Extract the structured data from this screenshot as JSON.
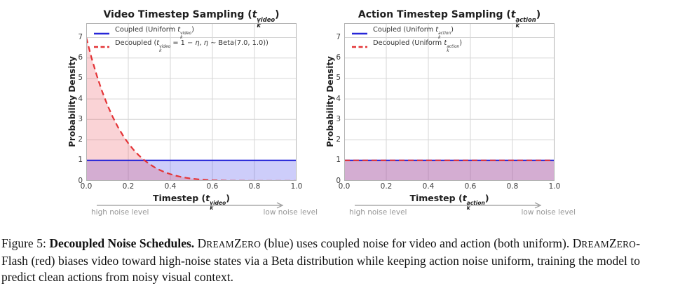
{
  "chart_data": [
    {
      "type": "line",
      "title_segments": [
        {
          "t": "Video Timestep Sampling ("
        },
        {
          "t": "t",
          "i": 1
        },
        {
          "stack": {
            "sup": "video",
            "sub": "k"
          }
        },
        {
          "t": ")"
        }
      ],
      "ylabel": "Probability Density",
      "xlabel_segments": [
        {
          "t": "Timestep ("
        },
        {
          "t": "t",
          "i": 1
        },
        {
          "stack": {
            "sup": "video",
            "sub": "k"
          }
        },
        {
          "t": ")"
        }
      ],
      "xlim": [
        0,
        1
      ],
      "ylim": [
        0,
        7.7
      ],
      "xticks": [
        "0.0",
        "0.2",
        "0.4",
        "0.6",
        "0.8",
        "1.0"
      ],
      "xtick_values": [
        0,
        0.2,
        0.4,
        0.6,
        0.8,
        1.0
      ],
      "yticks": [
        "0",
        "1",
        "2",
        "3",
        "4",
        "5",
        "6",
        "7"
      ],
      "ytick_values": [
        0,
        1,
        2,
        3,
        4,
        5,
        6,
        7
      ],
      "grid": true,
      "grid_color": "#d6d6d6",
      "border_color": "#b3b3b3",
      "legend_position": "upper-left",
      "legend": [
        {
          "color": "#2626d8",
          "dash": false,
          "segments": [
            {
              "t": "Coupled (Uniform "
            },
            {
              "t": "t",
              "i": 1
            },
            {
              "stack": {
                "sup": "video",
                "sub": "k"
              }
            },
            {
              "t": ")"
            }
          ]
        },
        {
          "color": "#e43437",
          "dash": true,
          "segments": [
            {
              "t": "Decoupled ("
            },
            {
              "t": "t",
              "i": 1
            },
            {
              "stack": {
                "sup": "video",
                "sub": "k"
              }
            },
            {
              "t": " = 1 − "
            },
            {
              "t": "η",
              "i": 1
            },
            {
              "t": ",  "
            },
            {
              "t": "η",
              "i": 1
            },
            {
              "t": " ∼ Beta(7.0, 1.0))"
            }
          ]
        }
      ],
      "series": [
        {
          "name": "Coupled (Uniform t_k^video)",
          "color": "#2626d8",
          "fill": "rgba(70,70,235,0.27)",
          "dash": false,
          "x": [
            0,
            1
          ],
          "y": [
            1,
            1
          ]
        },
        {
          "name": "Decoupled (t_k^video = 1 - eta, eta ~ Beta(7.0, 1.0))",
          "color": "#e43437",
          "fill": "rgba(235,80,90,0.25)",
          "dash": true,
          "x": [
            0,
            0.025,
            0.05,
            0.075,
            0.1,
            0.125,
            0.15,
            0.175,
            0.2,
            0.225,
            0.25,
            0.275,
            0.3,
            0.325,
            0.35,
            0.375,
            0.4,
            0.425,
            0.45,
            0.475,
            0.5,
            0.55,
            0.6,
            0.65,
            0.7,
            0.75,
            0.8,
            0.85,
            0.9,
            0.95,
            1.0
          ],
          "y": [
            7.0,
            6.013,
            5.146,
            4.385,
            3.72,
            3.142,
            2.64,
            2.207,
            1.835,
            1.517,
            1.246,
            1.016,
            0.824,
            0.662,
            0.528,
            0.417,
            0.327,
            0.253,
            0.194,
            0.147,
            0.109,
            0.058,
            0.029,
            0.013,
            0.005,
            0.002,
            0.001,
            0.0,
            0.0,
            0.0,
            0.0
          ]
        }
      ],
      "annotations": {
        "left": "high noise level",
        "right": "low noise level"
      }
    },
    {
      "type": "line",
      "title_segments": [
        {
          "t": "Action Timestep Sampling ("
        },
        {
          "t": "t",
          "i": 1
        },
        {
          "stack": {
            "sup": "action",
            "sub": "k"
          }
        },
        {
          "t": ")"
        }
      ],
      "ylabel": "Probability Density",
      "xlabel_segments": [
        {
          "t": "Timestep ("
        },
        {
          "t": "t",
          "i": 1
        },
        {
          "stack": {
            "sup": "action",
            "sub": "k"
          }
        },
        {
          "t": ")"
        }
      ],
      "xlim": [
        0,
        1
      ],
      "ylim": [
        0,
        7.7
      ],
      "xticks": [
        "0.0",
        "0.2",
        "0.4",
        "0.6",
        "0.8",
        "1.0"
      ],
      "xtick_values": [
        0,
        0.2,
        0.4,
        0.6,
        0.8,
        1.0
      ],
      "yticks": [
        "0",
        "1",
        "2",
        "3",
        "4",
        "5",
        "6",
        "7"
      ],
      "ytick_values": [
        0,
        1,
        2,
        3,
        4,
        5,
        6,
        7
      ],
      "grid": true,
      "grid_color": "#d6d6d6",
      "border_color": "#b3b3b3",
      "legend_position": "upper-left",
      "legend": [
        {
          "color": "#2626d8",
          "dash": false,
          "segments": [
            {
              "t": "Coupled (Uniform "
            },
            {
              "t": "t",
              "i": 1
            },
            {
              "stack": {
                "sup": "action",
                "sub": "k"
              }
            },
            {
              "t": ")"
            }
          ]
        },
        {
          "color": "#e43437",
          "dash": true,
          "segments": [
            {
              "t": "Decoupled (Uniform "
            },
            {
              "t": "t",
              "i": 1
            },
            {
              "stack": {
                "sup": "action",
                "sub": "k"
              }
            },
            {
              "t": ")"
            }
          ]
        }
      ],
      "series": [
        {
          "name": "Coupled (Uniform t_k^action)",
          "color": "#2626d8",
          "fill": "rgba(70,70,235,0.27)",
          "dash": false,
          "x": [
            0,
            1
          ],
          "y": [
            1,
            1
          ]
        },
        {
          "name": "Decoupled (Uniform t_k^action)",
          "color": "#e43437",
          "fill": "rgba(235,80,90,0.25)",
          "dash": true,
          "x": [
            0,
            1
          ],
          "y": [
            1,
            1
          ]
        }
      ],
      "annotations": {
        "left": "high noise level",
        "right": "low noise level"
      }
    }
  ],
  "caption": {
    "segments": [
      {
        "t": "Figure 5: "
      },
      {
        "t": "Decoupled Noise Schedules.",
        "b": 1
      },
      {
        "t": " D"
      },
      {
        "t": "REAM",
        "sc": 1
      },
      {
        "t": "Z",
        "": ""
      },
      {
        "t": "ERO",
        "sc": 1
      },
      {
        "t": " (blue) uses coupled noise for video and action (both uniform). D"
      },
      {
        "t": "REAM",
        "sc": 1
      },
      {
        "t": "Z"
      },
      {
        "t": "ERO",
        "sc": 1
      },
      {
        "t": "-Flash (red) biases video toward high-noise states via a Beta distribution while keeping action noise uniform, training the model to predict clean actions from noisy visual context."
      }
    ]
  }
}
